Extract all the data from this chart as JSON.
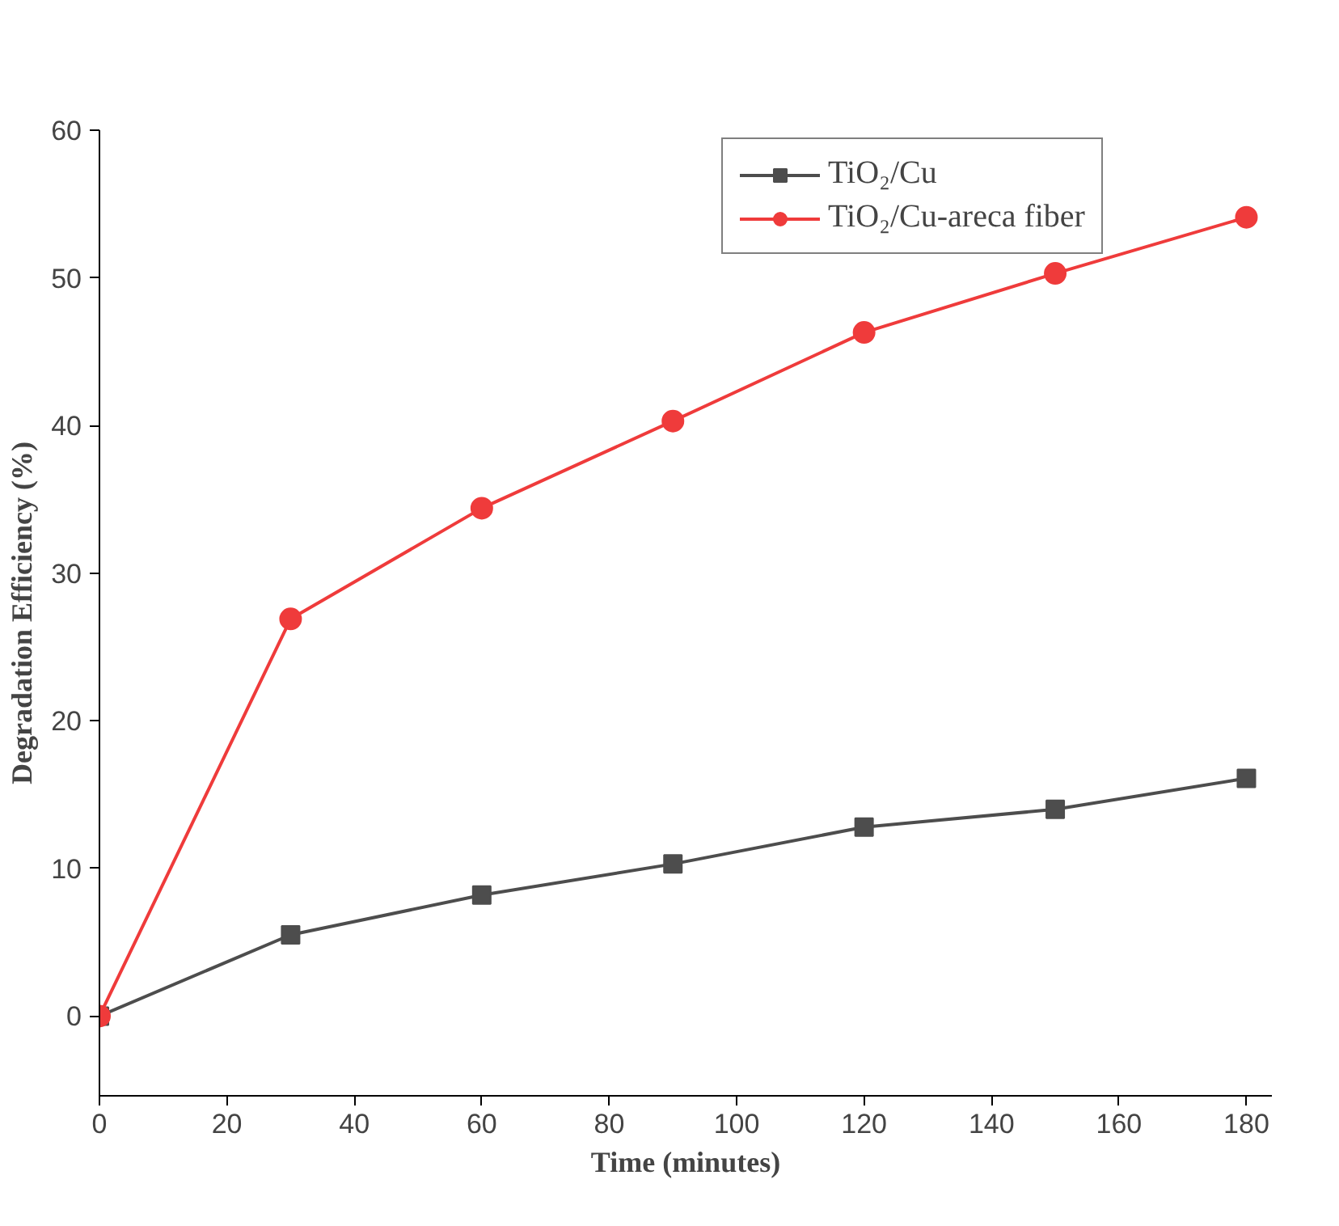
{
  "chart_data": {
    "type": "line",
    "xlabel": "Time (minutes)",
    "ylabel": "Degradation Efficiency (%)",
    "x": [
      0,
      30,
      60,
      90,
      120,
      150,
      180
    ],
    "series": [
      {
        "name": "TiO₂/Cu",
        "color": "#4d4d4d",
        "marker": "square",
        "values": [
          0,
          5.5,
          8.2,
          10.3,
          12.8,
          14.0,
          16.1
        ]
      },
      {
        "name": "TiO₂/Cu-areca fiber",
        "color": "#ef3b3b",
        "marker": "circle",
        "values": [
          0,
          26.9,
          34.4,
          40.3,
          46.3,
          50.3,
          54.1
        ]
      }
    ],
    "xlim": [
      0,
      184
    ],
    "ylim": [
      -5.4,
      60
    ],
    "xticks": [
      0,
      20,
      40,
      60,
      80,
      100,
      120,
      140,
      160,
      180
    ],
    "yticks": [
      0,
      10,
      20,
      30,
      40,
      50,
      60
    ],
    "grid": false,
    "legend": "top right",
    "line_style": "solid"
  }
}
